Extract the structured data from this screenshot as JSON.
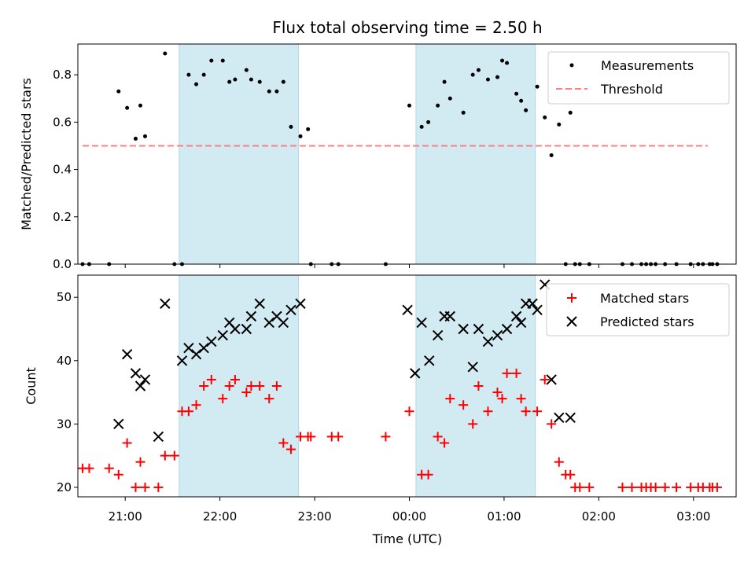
{
  "title": "Flux total observing time = 2.50 h",
  "colors": {
    "shade": "#add8e6",
    "measure": "#000000",
    "threshold": "#ff7f7f",
    "matched": "#ff0000",
    "predicted": "#000000"
  },
  "chart_data": [
    {
      "type": "scatter",
      "panel": "top",
      "ylabel": "Matched/Predicted stars",
      "xlim": [
        20.5,
        27.45
      ],
      "ylim": [
        0,
        0.93
      ],
      "yticks": [
        0.0,
        0.2,
        0.4,
        0.6,
        0.8
      ],
      "ytick_labels": [
        "0.0",
        "0.2",
        "0.4",
        "0.6",
        "0.8"
      ],
      "shaded_intervals": [
        [
          21.57,
          22.83
        ],
        [
          24.07,
          25.33
        ]
      ],
      "legend": {
        "position": "top-right",
        "entries": [
          "Measurements",
          "Threshold"
        ]
      },
      "series": [
        {
          "name": "Measurements",
          "marker": "dot",
          "x": [
            20.55,
            20.62,
            20.83,
            20.93,
            21.02,
            21.11,
            21.16,
            21.21,
            21.42,
            21.52,
            21.6,
            21.67,
            21.75,
            21.83,
            21.91,
            22.03,
            22.1,
            22.16,
            22.28,
            22.33,
            22.42,
            22.52,
            22.6,
            22.67,
            22.75,
            22.85,
            22.93,
            22.96,
            23.18,
            23.25,
            23.75,
            24.0,
            24.13,
            24.2,
            24.3,
            24.37,
            24.43,
            24.57,
            24.67,
            24.73,
            24.83,
            24.93,
            24.98,
            25.03,
            25.13,
            25.18,
            25.23,
            25.35,
            25.43,
            25.5,
            25.58,
            25.65,
            25.7,
            25.75,
            25.8,
            25.9,
            26.25,
            26.35,
            26.45,
            26.5,
            26.55,
            26.6,
            26.7,
            26.82,
            26.97,
            27.05,
            27.1,
            27.17,
            27.2,
            27.25
          ],
          "y": [
            0,
            0,
            0,
            0.73,
            0.66,
            0.53,
            0.67,
            0.54,
            0.89,
            0,
            0,
            0.8,
            0.76,
            0.8,
            0.86,
            0.86,
            0.77,
            0.78,
            0.82,
            0.78,
            0.77,
            0.73,
            0.73,
            0.77,
            0.58,
            0.54,
            0.57,
            0,
            0,
            0,
            0,
            0.67,
            0.58,
            0.6,
            0.67,
            0.77,
            0.7,
            0.64,
            0.8,
            0.82,
            0.78,
            0.79,
            0.86,
            0.85,
            0.72,
            0.69,
            0.65,
            0.75,
            0.62,
            0.46,
            0.59,
            0,
            0.64,
            0,
            0,
            0,
            0,
            0,
            0,
            0,
            0,
            0,
            0,
            0,
            0,
            0,
            0,
            0,
            0,
            0
          ]
        },
        {
          "name": "Threshold",
          "type": "line",
          "x": [
            20.55,
            27.15
          ],
          "y": [
            0.5,
            0.5
          ]
        }
      ]
    },
    {
      "type": "scatter",
      "panel": "bottom",
      "ylabel": "Count",
      "xlabel": "Time (UTC)",
      "xlim": [
        20.5,
        27.45
      ],
      "ylim": [
        18.5,
        53.5
      ],
      "yticks": [
        20,
        30,
        40,
        50
      ],
      "ytick_labels": [
        "20",
        "30",
        "40",
        "50"
      ],
      "xticks": [
        21.0,
        22.0,
        23.0,
        24.0,
        25.0,
        26.0,
        27.0
      ],
      "xtick_labels": [
        "21:00",
        "22:00",
        "23:00",
        "00:00",
        "01:00",
        "02:00",
        "03:00"
      ],
      "shaded_intervals": [
        [
          21.57,
          22.83
        ],
        [
          24.07,
          25.33
        ]
      ],
      "legend": {
        "position": "top-right",
        "entries": [
          "Matched stars",
          "Predicted stars"
        ]
      },
      "series": [
        {
          "name": "Matched stars",
          "marker": "plus",
          "x": [
            20.55,
            20.62,
            20.83,
            20.93,
            21.02,
            21.11,
            21.16,
            21.21,
            21.35,
            21.42,
            21.52,
            21.6,
            21.67,
            21.75,
            21.83,
            21.91,
            22.03,
            22.1,
            22.16,
            22.28,
            22.33,
            22.42,
            22.52,
            22.6,
            22.67,
            22.75,
            22.85,
            22.93,
            22.96,
            23.18,
            23.25,
            23.75,
            24.0,
            24.13,
            24.2,
            24.3,
            24.37,
            24.43,
            24.57,
            24.67,
            24.73,
            24.83,
            24.93,
            24.98,
            25.03,
            25.13,
            25.18,
            25.23,
            25.35,
            25.43,
            25.5,
            25.58,
            25.65,
            25.7,
            25.75,
            25.8,
            25.9,
            26.25,
            26.35,
            26.45,
            26.5,
            26.55,
            26.6,
            26.7,
            26.82,
            26.97,
            27.05,
            27.1,
            27.17,
            27.2,
            27.25
          ],
          "y": [
            23,
            23,
            23,
            22,
            27,
            20,
            24,
            20,
            20,
            25,
            25,
            32,
            32,
            33,
            36,
            37,
            34,
            36,
            37,
            35,
            36,
            36,
            34,
            36,
            27,
            26,
            28,
            28,
            28,
            28,
            28,
            28,
            32,
            22,
            22,
            28,
            27,
            34,
            33,
            30,
            36,
            32,
            35,
            34,
            38,
            38,
            34,
            32,
            32,
            37,
            30,
            24,
            22,
            22,
            20,
            20,
            20,
            20,
            20,
            20,
            20,
            20,
            20,
            20,
            20,
            20,
            20,
            20,
            20,
            20,
            20
          ]
        },
        {
          "name": "Predicted stars",
          "marker": "x",
          "x": [
            20.93,
            21.02,
            21.11,
            21.16,
            21.21,
            21.35,
            21.42,
            21.6,
            21.67,
            21.75,
            21.83,
            21.91,
            22.03,
            22.1,
            22.16,
            22.28,
            22.33,
            22.42,
            22.52,
            22.6,
            22.67,
            22.75,
            22.85,
            23.98,
            24.06,
            24.13,
            24.21,
            24.3,
            24.37,
            24.43,
            24.57,
            24.67,
            24.73,
            24.83,
            24.93,
            25.03,
            25.13,
            25.18,
            25.23,
            25.3,
            25.35,
            25.43,
            25.5,
            25.58,
            25.7
          ],
          "y": [
            30,
            41,
            38,
            36,
            37,
            28,
            49,
            40,
            42,
            41,
            42,
            43,
            44,
            46,
            45,
            45,
            47,
            49,
            46,
            47,
            46,
            48,
            49,
            48,
            38,
            46,
            40,
            44,
            47,
            47,
            45,
            39,
            45,
            43,
            44,
            45,
            47,
            46,
            49,
            49,
            48,
            52,
            37,
            31,
            31
          ]
        }
      ]
    }
  ]
}
